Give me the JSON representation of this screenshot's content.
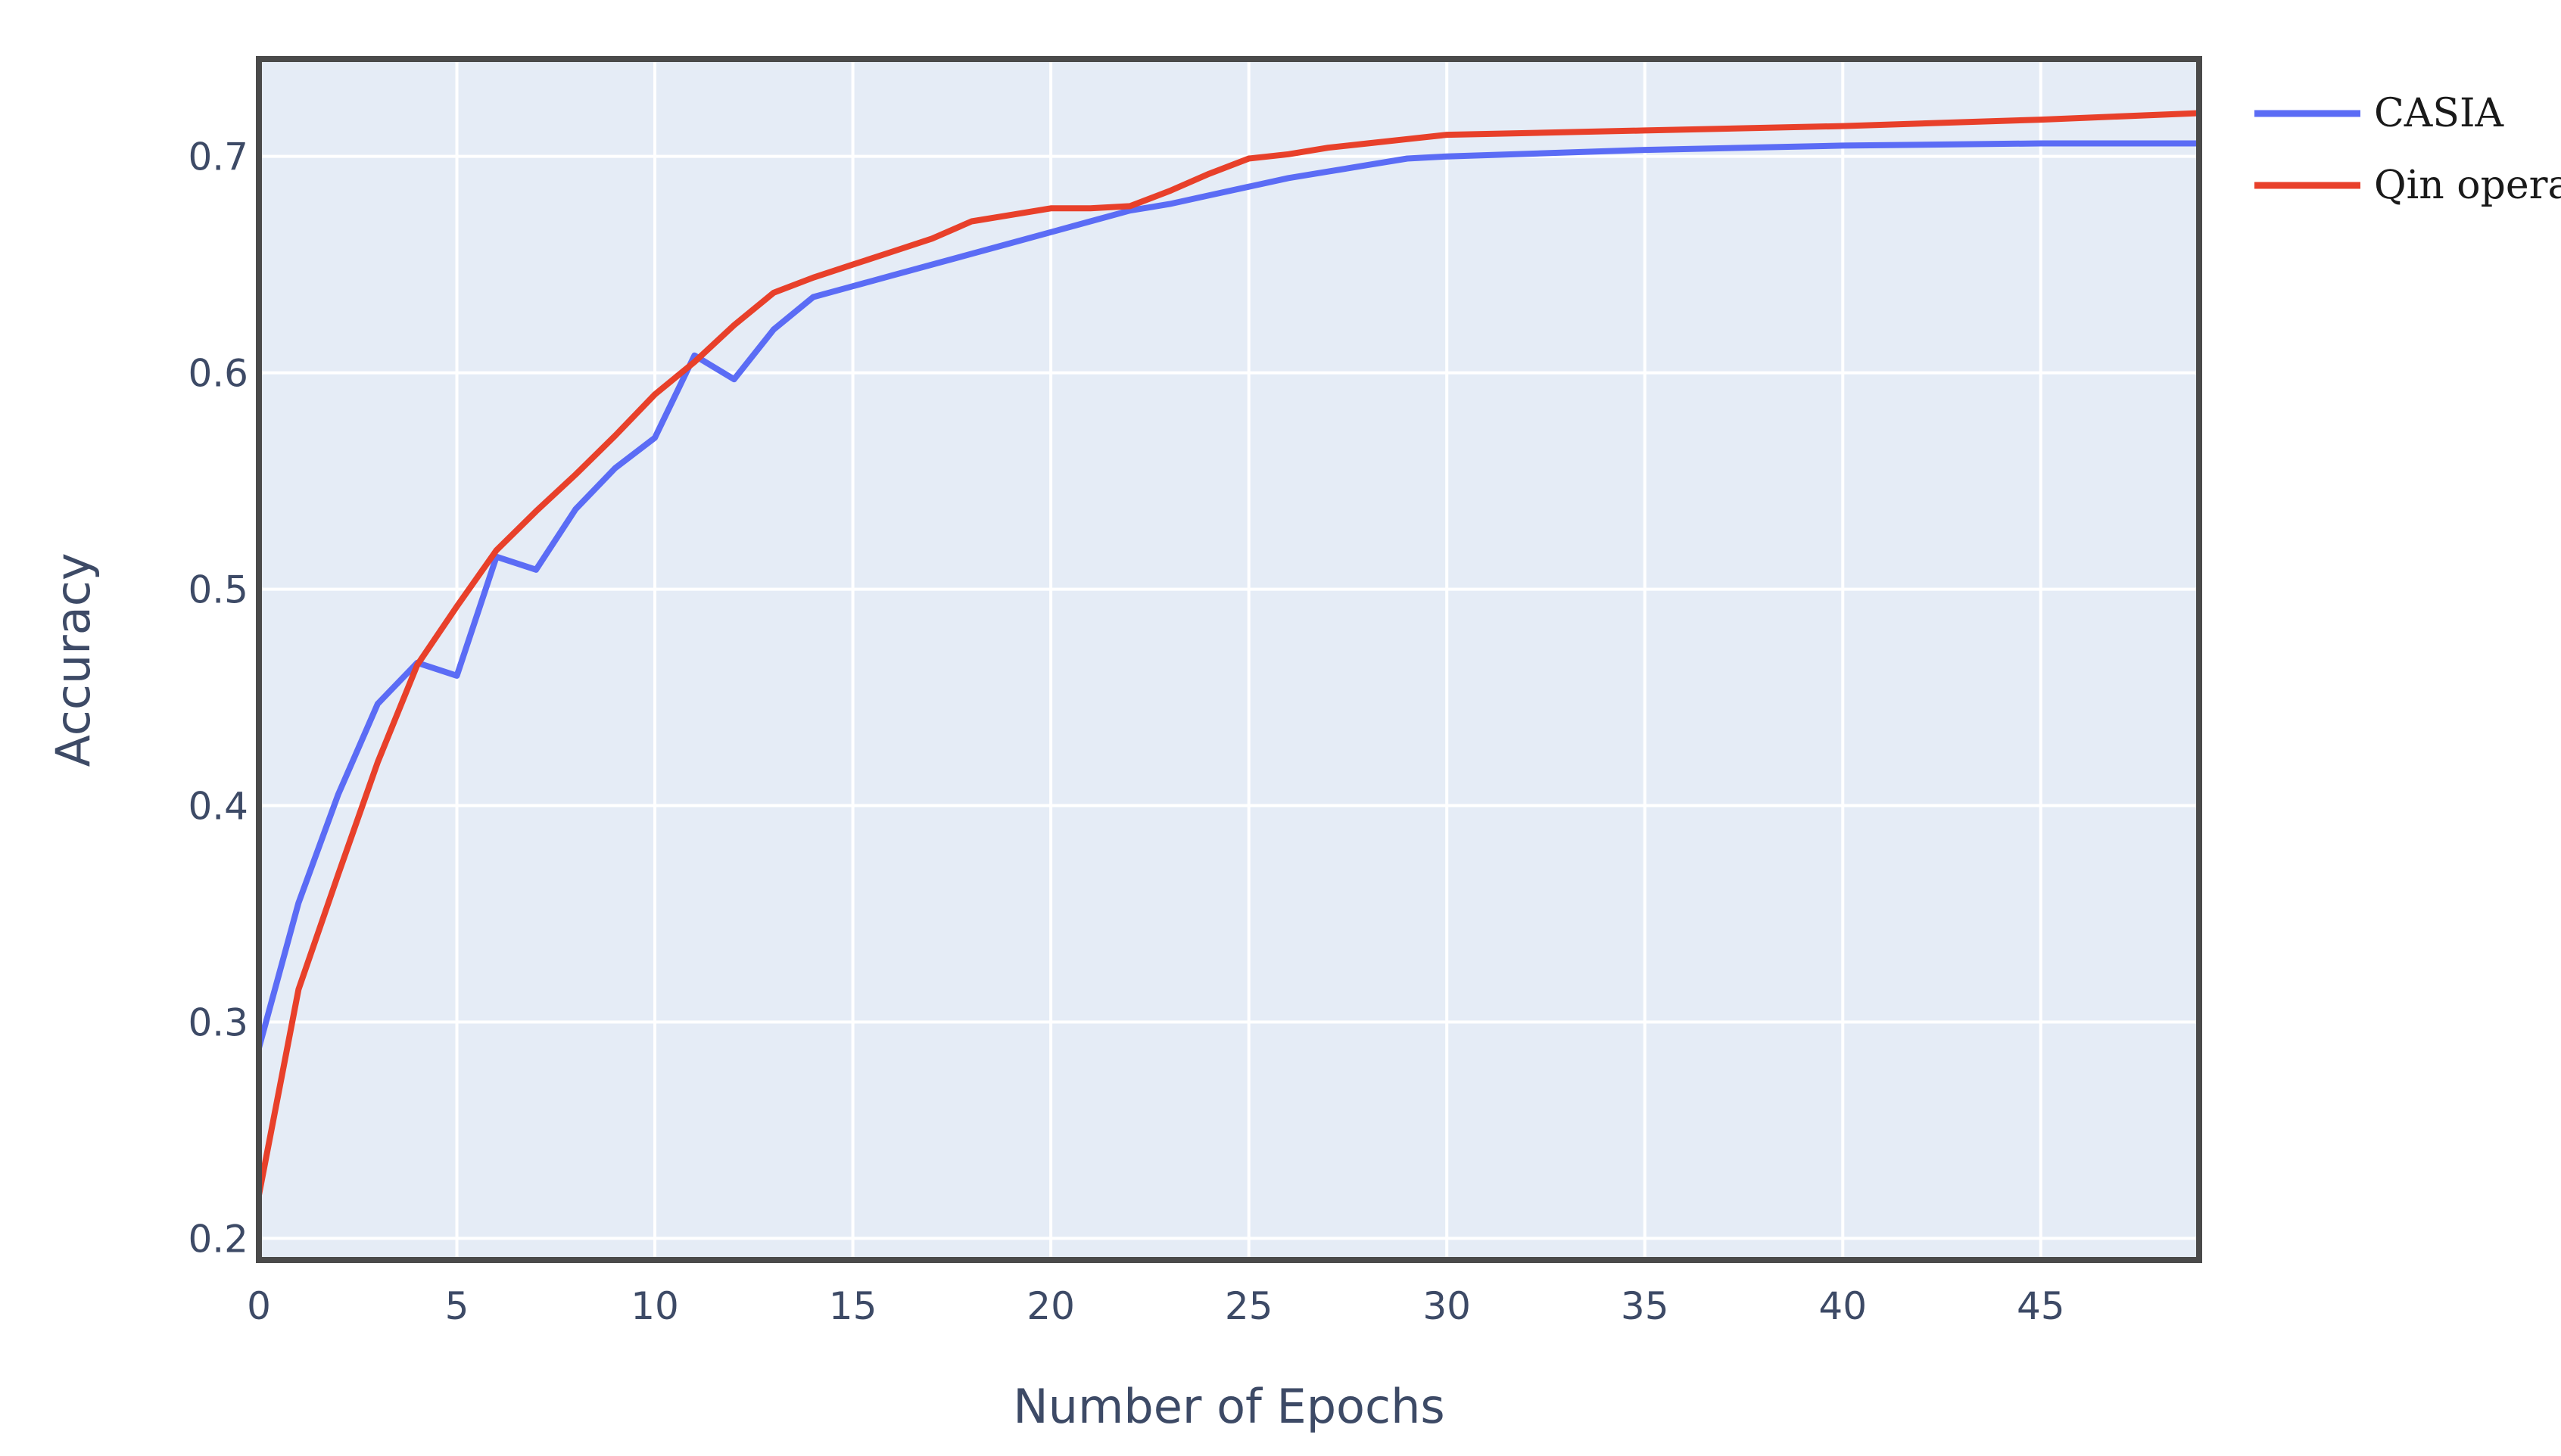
{
  "chart_data": {
    "type": "line",
    "title": "",
    "xlabel": "Number of Epochs",
    "ylabel": "Accuracy",
    "xlim": [
      0,
      49
    ],
    "ylim": [
      0.19,
      0.745
    ],
    "xticks": [
      0,
      5,
      10,
      15,
      20,
      25,
      30,
      35,
      40,
      45
    ],
    "yticks": [
      0.2,
      0.3,
      0.4,
      0.5,
      0.6,
      0.7
    ],
    "grid": true,
    "legend_position": "right-top",
    "colors": {
      "plot_background": "#e5ecf6",
      "grid": "#ffffff",
      "frame": "#4a4a4a"
    },
    "series": [
      {
        "name": "CASIA",
        "color": "#5b6cf5",
        "x": [
          0,
          1,
          2,
          3,
          4,
          5,
          6,
          7,
          8,
          9,
          10,
          11,
          12,
          13,
          14,
          15,
          16,
          17,
          18,
          19,
          20,
          21,
          22,
          23,
          24,
          25,
          26,
          27,
          28,
          29,
          30,
          35,
          40,
          45,
          49
        ],
        "values": [
          0.288,
          0.355,
          0.405,
          0.447,
          0.466,
          0.46,
          0.515,
          0.509,
          0.537,
          0.556,
          0.57,
          0.608,
          0.597,
          0.62,
          0.635,
          0.64,
          0.645,
          0.65,
          0.655,
          0.66,
          0.665,
          0.67,
          0.675,
          0.678,
          0.682,
          0.686,
          0.69,
          0.693,
          0.696,
          0.699,
          0.7,
          0.703,
          0.705,
          0.706,
          0.706
        ]
      },
      {
        "name": "Qin opera",
        "color": "#e8402a",
        "x": [
          0,
          1,
          2,
          3,
          4,
          5,
          6,
          7,
          8,
          9,
          10,
          11,
          12,
          13,
          14,
          15,
          16,
          17,
          18,
          19,
          20,
          21,
          22,
          23,
          24,
          25,
          26,
          27,
          28,
          29,
          30,
          35,
          40,
          45,
          49
        ],
        "values": [
          0.22,
          0.315,
          0.368,
          0.42,
          0.465,
          0.492,
          0.518,
          0.536,
          0.553,
          0.571,
          0.59,
          0.605,
          0.622,
          0.637,
          0.644,
          0.65,
          0.656,
          0.662,
          0.67,
          0.673,
          0.676,
          0.676,
          0.677,
          0.684,
          0.692,
          0.699,
          0.701,
          0.704,
          0.706,
          0.708,
          0.71,
          0.712,
          0.714,
          0.717,
          0.72
        ]
      }
    ]
  }
}
